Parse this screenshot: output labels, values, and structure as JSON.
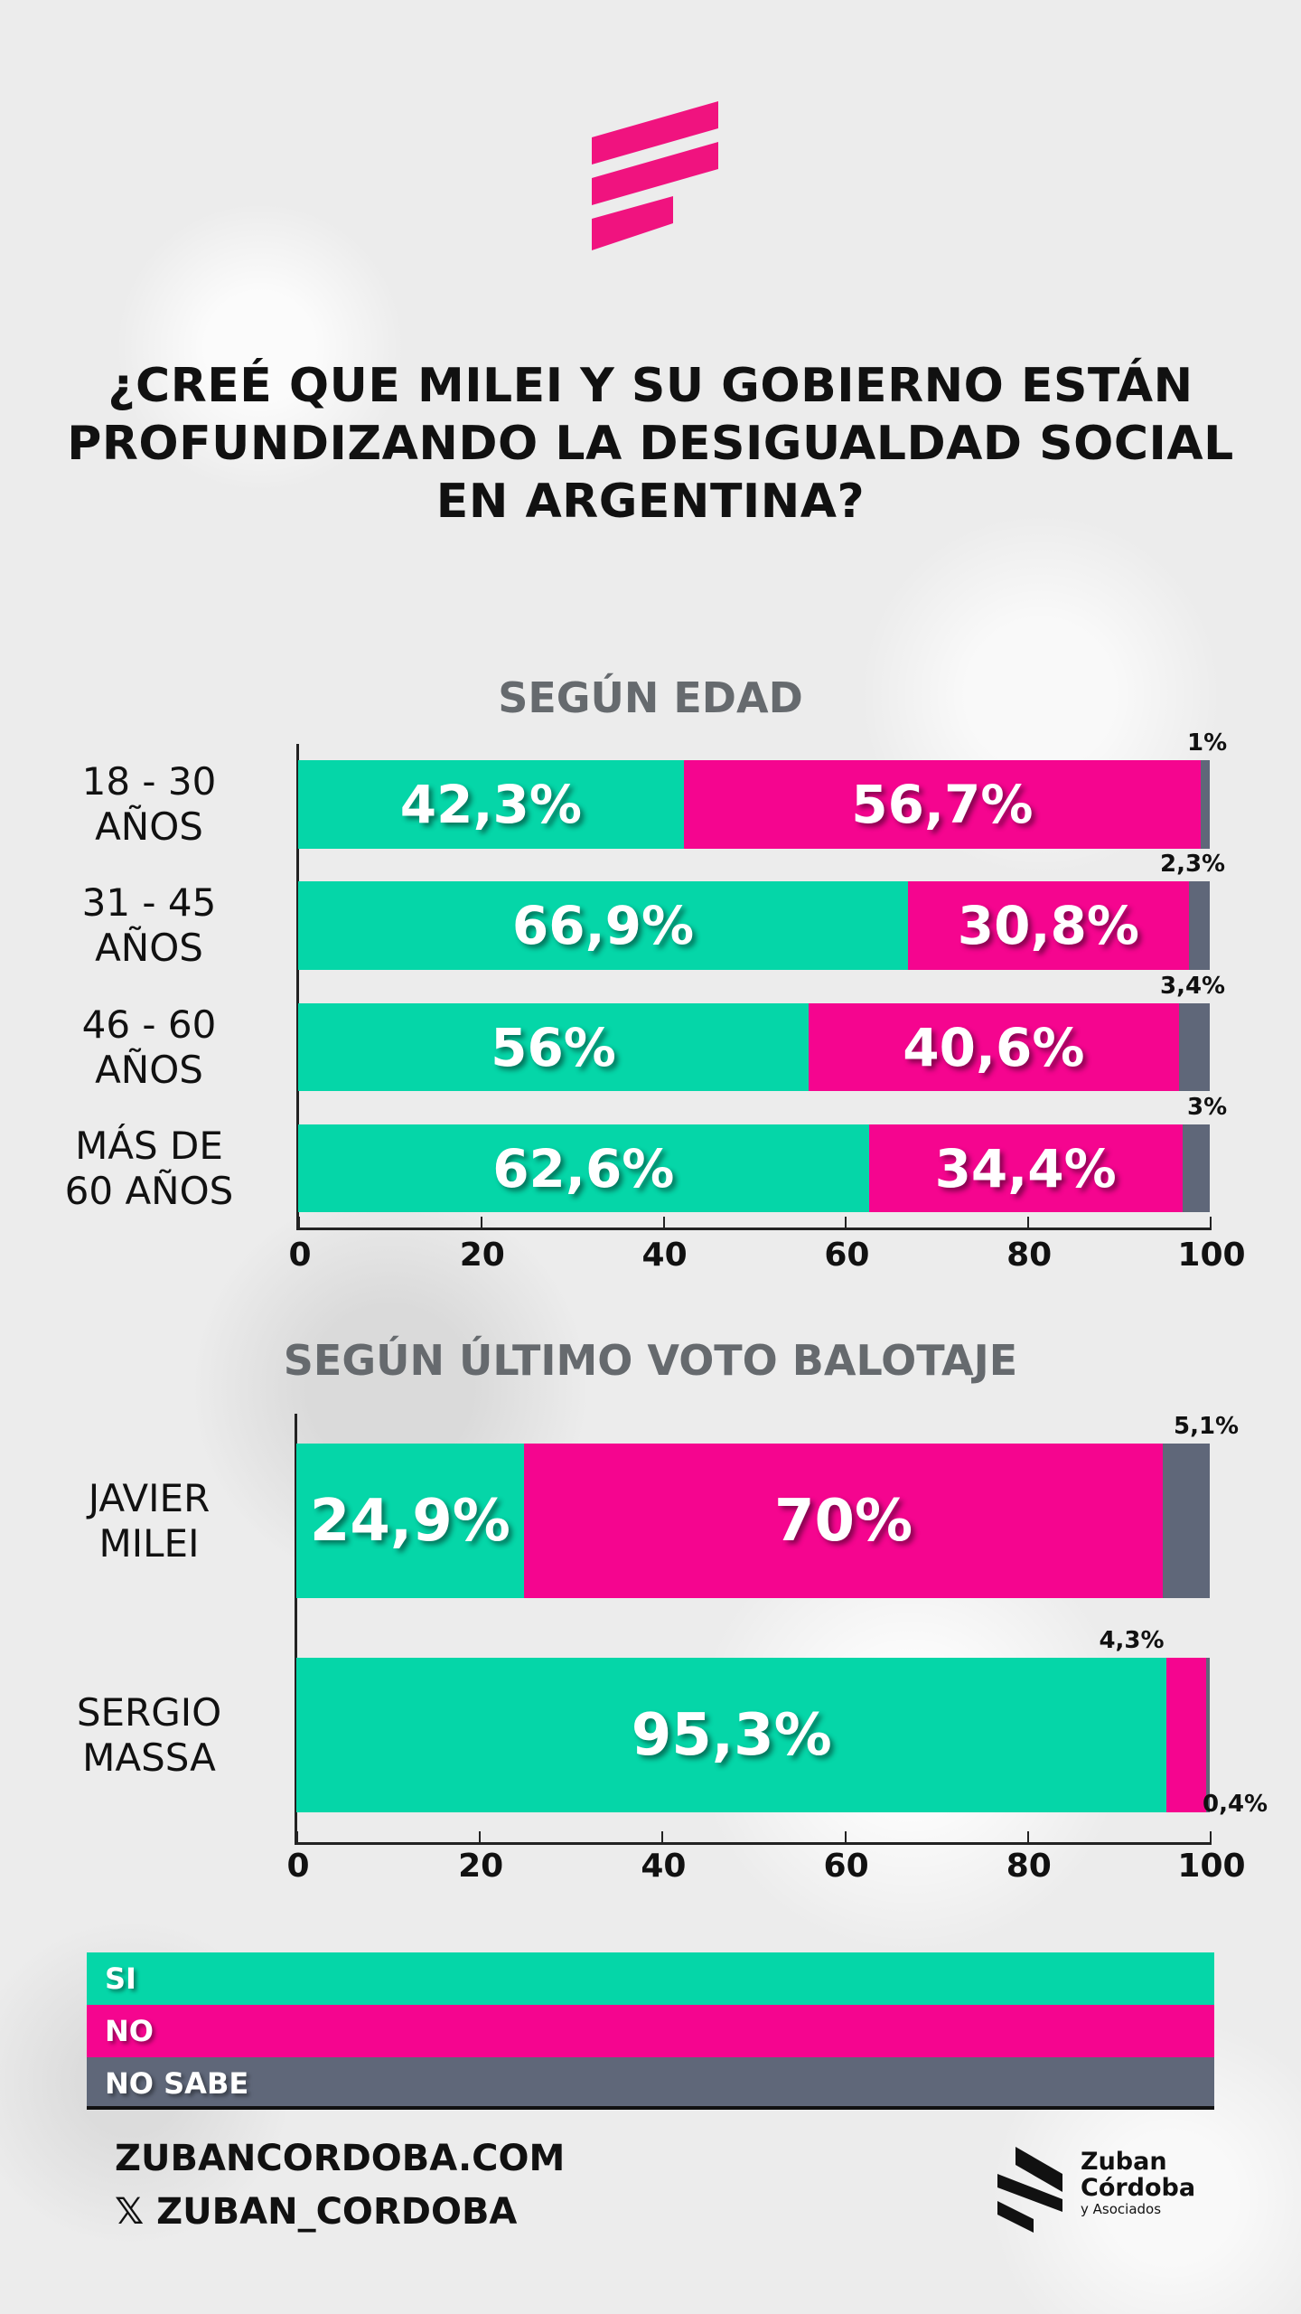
{
  "title_lines": [
    "¿CREÉ QUE MILEI Y SU GOBIERNO ESTÁN",
    "PROFUNDIZANDO LA DESIGUALDAD SOCIAL",
    "EN ARGENTINA?"
  ],
  "colors": {
    "si": "#05d6a8",
    "no": "#f5058f",
    "no_sabe": "#5f6779",
    "title": "#111111"
  },
  "chart_data": [
    {
      "type": "bar",
      "stacked": true,
      "orientation": "horizontal",
      "title": "SEGÚN EDAD",
      "categories": [
        [
          "18 - 30",
          "AÑOS"
        ],
        [
          "31 - 45",
          "AÑOS"
        ],
        [
          "46 - 60",
          "AÑOS"
        ],
        [
          "MÁS DE",
          "60 AÑOS"
        ]
      ],
      "series": [
        {
          "name": "SI",
          "values": [
            42.3,
            66.9,
            56,
            62.6
          ],
          "labels": [
            "42,3%",
            "66,9%",
            "56%",
            "62,6%"
          ]
        },
        {
          "name": "NO",
          "values": [
            56.7,
            30.8,
            40.6,
            34.4
          ],
          "labels": [
            "56,7%",
            "30,8%",
            "40,6%",
            "34,4%"
          ]
        },
        {
          "name": "NO SABE",
          "values": [
            1,
            2.3,
            3.4,
            3
          ],
          "labels": [
            "1%",
            "2,3%",
            "3,4%",
            "3%"
          ]
        }
      ],
      "xlim": [
        0,
        100
      ],
      "xticks": [
        "0",
        "20",
        "40",
        "60",
        "80",
        "100"
      ]
    },
    {
      "type": "bar",
      "stacked": true,
      "orientation": "horizontal",
      "title": "SEGÚN ÚLTIMO VOTO BALOTAJE",
      "categories": [
        [
          "JAVIER",
          "MILEI"
        ],
        [
          "SERGIO",
          "MASSA"
        ]
      ],
      "series": [
        {
          "name": "SI",
          "values": [
            24.9,
            95.3
          ],
          "labels": [
            "24,9%",
            "95,3%"
          ]
        },
        {
          "name": "NO",
          "values": [
            70,
            4.3
          ],
          "labels": [
            "70%",
            "4,3%"
          ]
        },
        {
          "name": "NO SABE",
          "values": [
            5.1,
            0.4
          ],
          "labels": [
            "5,1%",
            "0,4%"
          ]
        }
      ],
      "xlim": [
        0,
        100
      ],
      "xticks": [
        "0",
        "20",
        "40",
        "60",
        "80",
        "100"
      ]
    }
  ],
  "legend": [
    "SI",
    "NO",
    "NO SABE"
  ],
  "footer": {
    "website": "ZUBANCORDOBA.COM",
    "x_handle": "ZUBAN_CORDOBA",
    "x_icon": "𝕏",
    "brand": [
      "Zuban",
      "Córdoba",
      "y Asociados"
    ]
  }
}
